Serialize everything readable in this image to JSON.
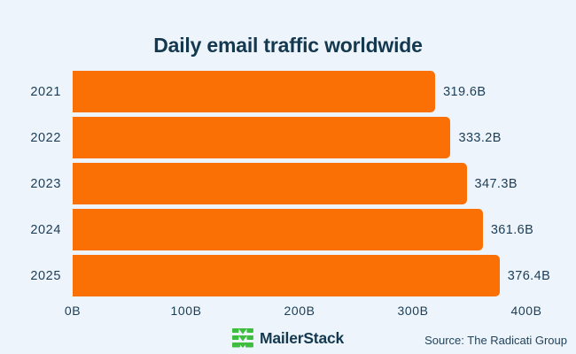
{
  "chart_data": {
    "type": "bar",
    "orientation": "horizontal",
    "title": "Daily email traffic worldwide",
    "categories": [
      "2021",
      "2022",
      "2023",
      "2024",
      "2025"
    ],
    "values": [
      319.6,
      333.2,
      347.3,
      361.6,
      376.4
    ],
    "value_labels": [
      "319.6B",
      "333.2B",
      "347.3B",
      "361.6B",
      "376.4B"
    ],
    "unit": "B",
    "xlabel": "",
    "ylabel": "",
    "xlim": [
      0,
      400
    ],
    "x_ticks": [
      "0B",
      "100B",
      "200B",
      "300B",
      "400B"
    ],
    "x_tick_values": [
      0,
      100,
      200,
      300,
      400
    ],
    "grid": false,
    "legend": false,
    "bar_color": "#fa7005"
  },
  "footer": {
    "brand": "MailerStack",
    "brand_icon": "stacked-envelopes-icon",
    "brand_color": "#3ebe3e",
    "source": "Source: The Radicati Group"
  },
  "colors": {
    "background": "#edf4fb",
    "title_text": "#14384e",
    "label_text": "#1c3d56",
    "bar": "#fa7005",
    "logo_green": "#3ebe3e"
  }
}
